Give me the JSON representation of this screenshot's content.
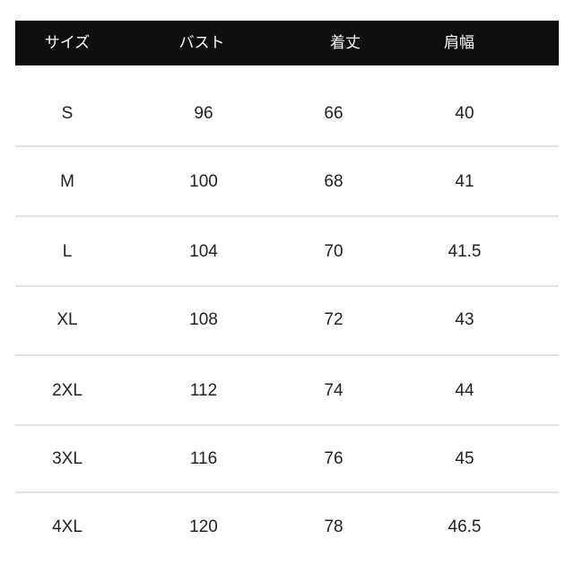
{
  "table": {
    "headers": [
      "サイズ",
      "バスト",
      "着丈",
      "肩幅"
    ],
    "rows": [
      [
        "S",
        "96",
        "66",
        "40"
      ],
      [
        "M",
        "100",
        "68",
        "41"
      ],
      [
        "L",
        "104",
        "70",
        "41.5"
      ],
      [
        "XL",
        "108",
        "72",
        "43"
      ],
      [
        "2XL",
        "112",
        "74",
        "44"
      ],
      [
        "3XL",
        "116",
        "76",
        "45"
      ],
      [
        "4XL",
        "120",
        "78",
        "46.5"
      ]
    ]
  },
  "colors": {
    "header_bg": "#0f0f0f",
    "header_text": "#ffffff",
    "divider": "#e3e3e3"
  }
}
